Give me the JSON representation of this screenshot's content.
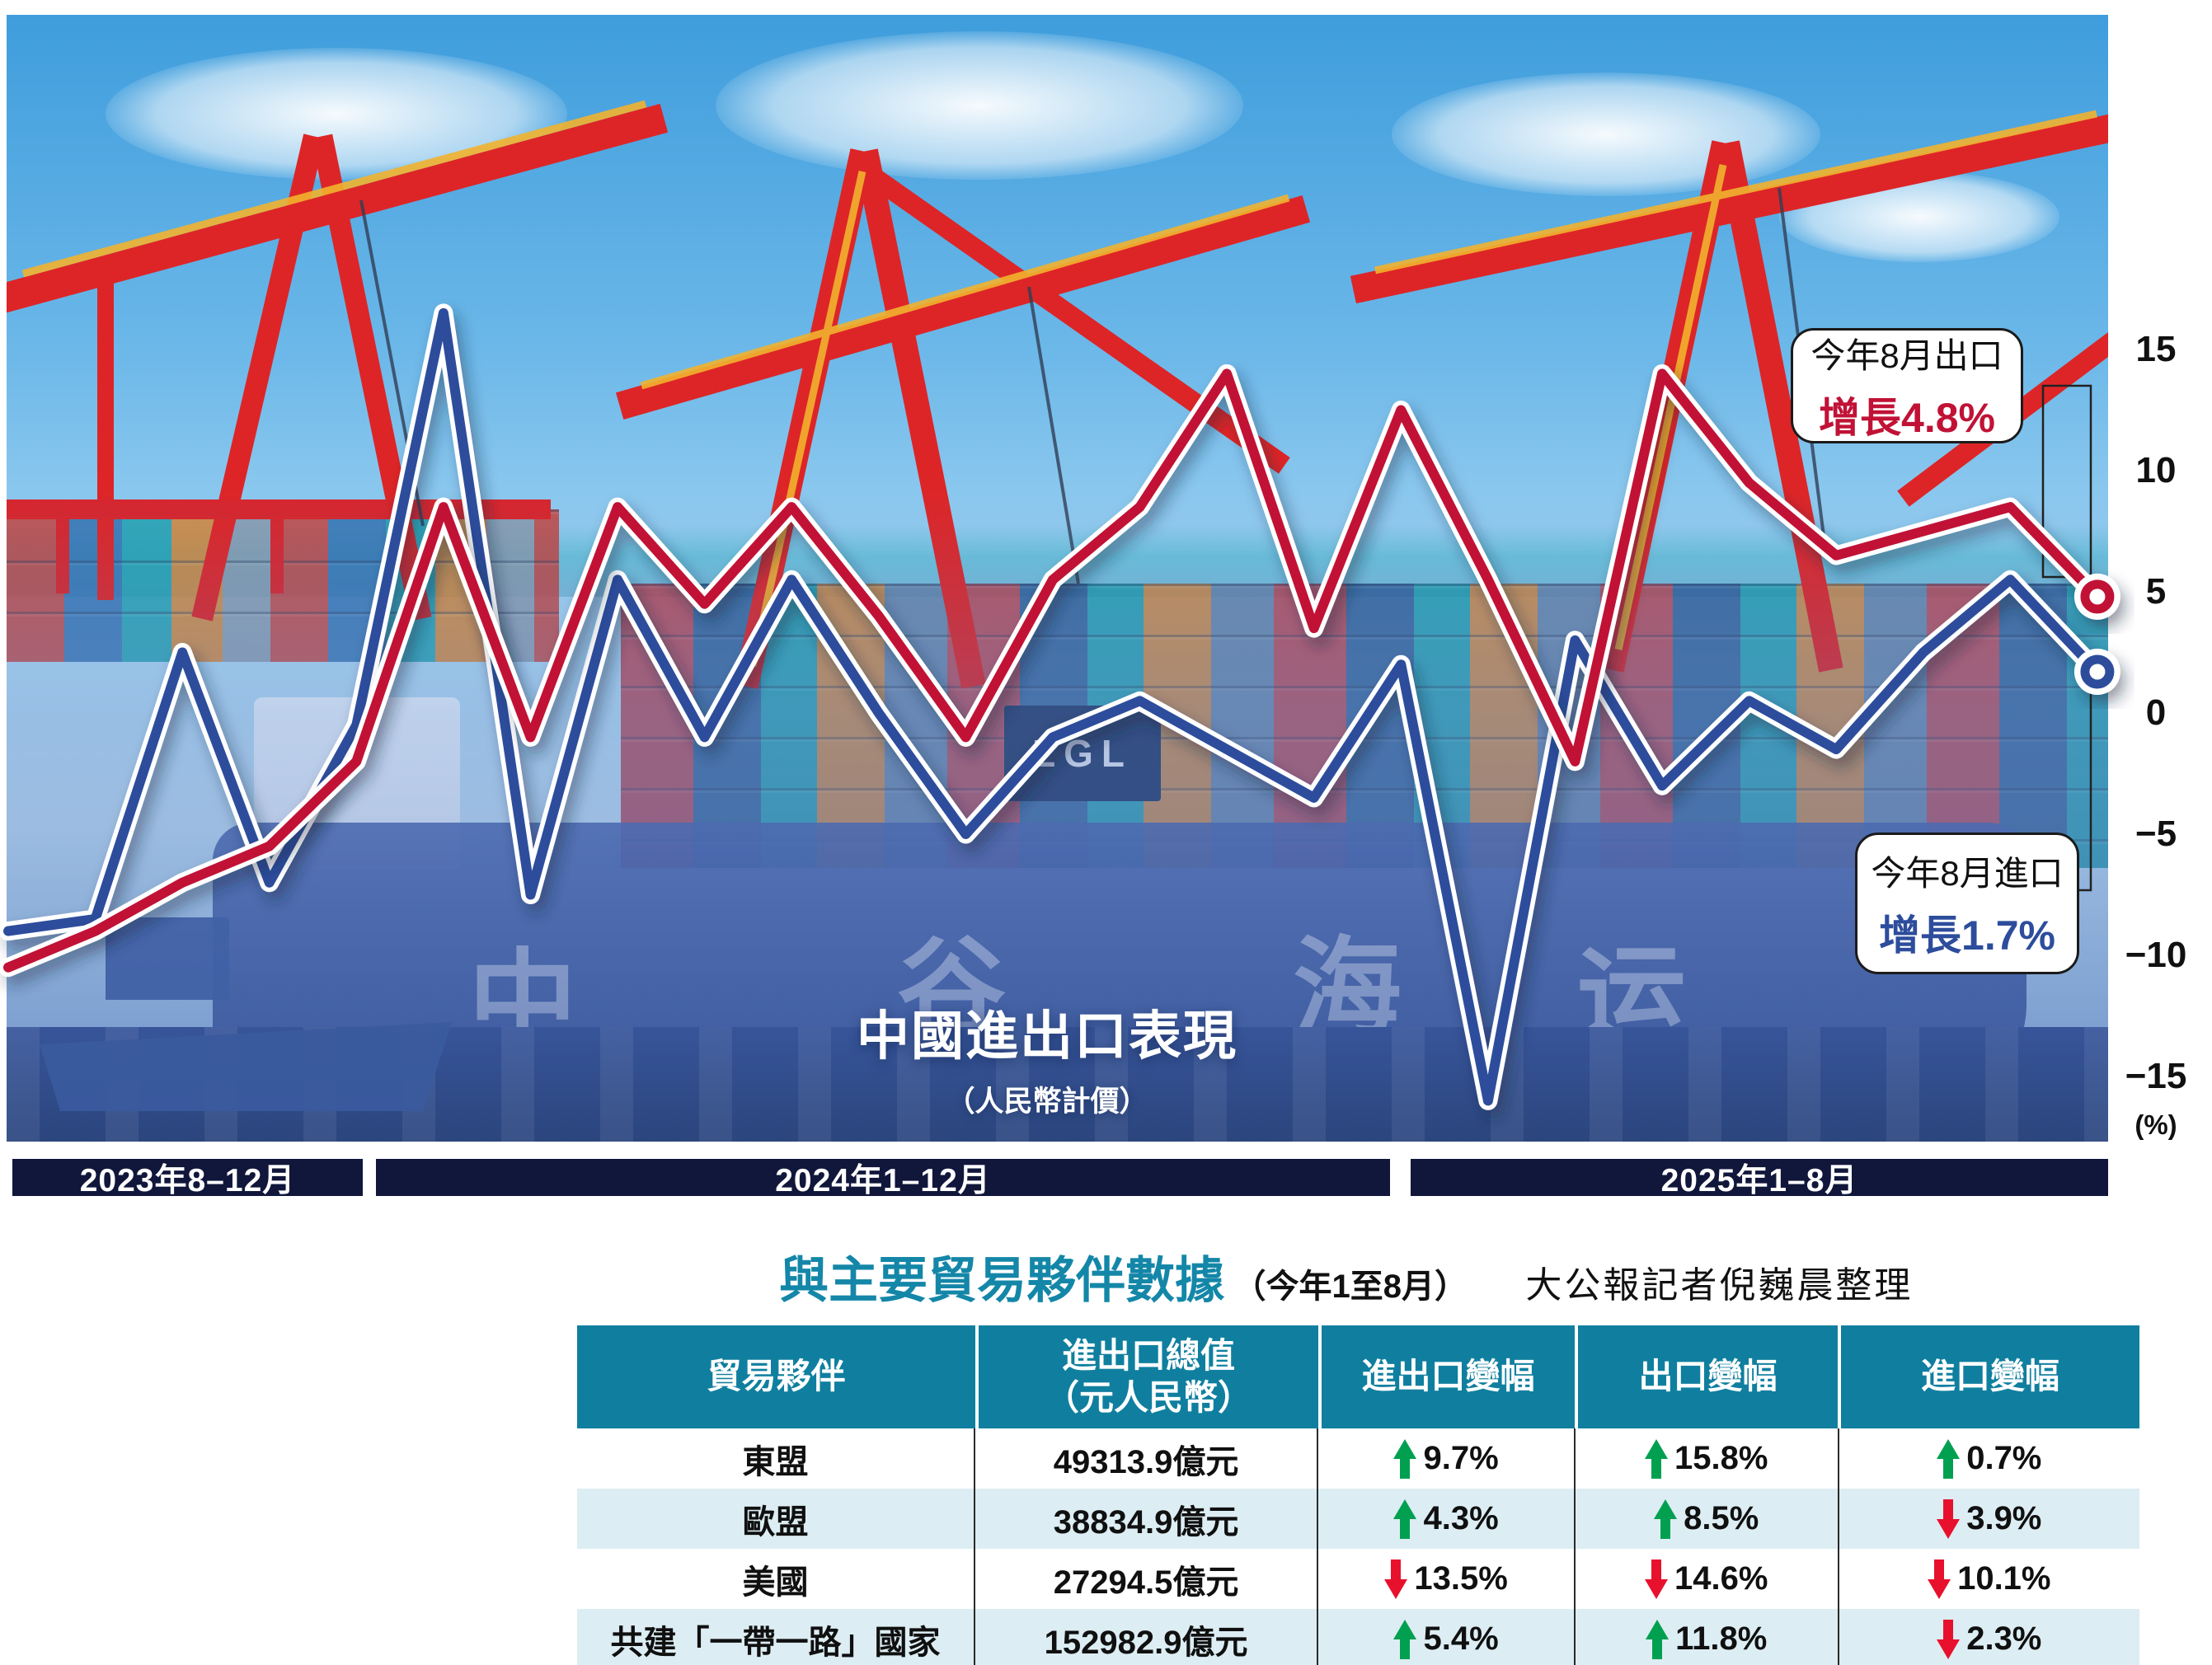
{
  "photo": {
    "hull_characters": [
      "中",
      "谷",
      "海",
      "运"
    ],
    "container_label": "ZGL"
  },
  "chart_data": [
    {
      "type": "line",
      "title": "中國進出口表現",
      "subtitle": "（人民幣計價）",
      "y_unit": "(%)",
      "ylim": [
        -15,
        15
      ],
      "grid": false,
      "legend": "none",
      "y_ticks": [
        {
          "label": "15",
          "v": 15
        },
        {
          "label": "10",
          "v": 10
        },
        {
          "label": "5",
          "v": 5
        },
        {
          "label": "0",
          "v": 0
        },
        {
          "label": "−5",
          "v": -5
        },
        {
          "label": "−10",
          "v": -10
        },
        {
          "label": "−15",
          "v": -15
        }
      ],
      "x_bands": [
        {
          "label": "2023年8–12月"
        },
        {
          "label": "2024年1–12月"
        },
        {
          "label": "2025年1–8月"
        }
      ],
      "x": [
        "2023-08",
        "2023-09",
        "2023-10",
        "2023-11",
        "2023-12",
        "2024-01",
        "2024-02",
        "2024-03",
        "2024-04",
        "2024-05",
        "2024-06",
        "2024-07",
        "2024-08",
        "2024-09",
        "2024-10",
        "2024-11",
        "2024-12",
        "2025-01",
        "2025-02",
        "2025-03",
        "2025-04",
        "2025-05",
        "2025-06",
        "2025-07",
        "2025-08"
      ],
      "series": [
        {
          "name": "出口",
          "color": "#c11236",
          "values": [
            -10.5,
            -9,
            -7,
            -5.5,
            -2,
            8.5,
            -1,
            8.5,
            4.5,
            8.5,
            4,
            -1,
            5.5,
            8.5,
            14,
            3.5,
            12.5,
            5.5,
            -2,
            14,
            9.5,
            6.5,
            7.5,
            8.5,
            4.8
          ]
        },
        {
          "name": "進口",
          "color": "#2d4d9c",
          "values": [
            -9,
            -8.5,
            2.5,
            -7,
            -0.5,
            16.5,
            -7.5,
            5.5,
            -1,
            5.5,
            0,
            -5,
            -1,
            0.5,
            -1.5,
            -3.5,
            2,
            -16,
            3,
            -3,
            0.5,
            -1.5,
            2.5,
            5.5,
            1.7
          ]
        }
      ],
      "annotations": {
        "export": {
          "line1": "今年8月出口",
          "line2": "增長4.8%"
        },
        "import": {
          "line1": "今年8月進口",
          "line2": "增長1.7%"
        }
      }
    },
    {
      "type": "table",
      "title": "與主要貿易夥伴數據",
      "period": "（今年1至8月）",
      "credit": "大公報記者倪巍晨整理",
      "headers": [
        {
          "l1": "貿易夥伴",
          "l2": ""
        },
        {
          "l1": "進出口總值",
          "l2": "（元人民幣）"
        },
        {
          "l1": "進出口變幅",
          "l2": ""
        },
        {
          "l1": "出口變幅",
          "l2": ""
        },
        {
          "l1": "進口變幅",
          "l2": ""
        }
      ],
      "rows": [
        {
          "partner": "東盟",
          "total": "49313.9億元",
          "changes": [
            {
              "dir": "up",
              "value": "9.7%"
            },
            {
              "dir": "up",
              "value": "15.8%"
            },
            {
              "dir": "up",
              "value": "0.7%"
            }
          ]
        },
        {
          "partner": "歐盟",
          "total": "38834.9億元",
          "changes": [
            {
              "dir": "up",
              "value": "4.3%"
            },
            {
              "dir": "up",
              "value": "8.5%"
            },
            {
              "dir": "down",
              "value": "3.9%"
            }
          ]
        },
        {
          "partner": "美國",
          "total": "27294.5億元",
          "changes": [
            {
              "dir": "down",
              "value": "13.5%"
            },
            {
              "dir": "down",
              "value": "14.6%"
            },
            {
              "dir": "down",
              "value": "10.1%"
            }
          ]
        },
        {
          "partner": "共建「一帶一路」國家",
          "total": "152982.9億元",
          "changes": [
            {
              "dir": "up",
              "value": "5.4%"
            },
            {
              "dir": "up",
              "value": "11.8%"
            },
            {
              "dir": "down",
              "value": "2.3%"
            }
          ]
        }
      ]
    }
  ]
}
